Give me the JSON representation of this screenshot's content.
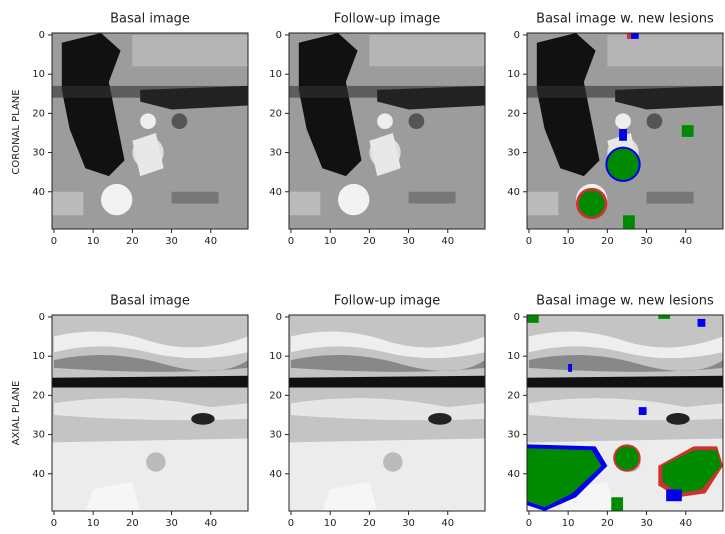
{
  "row_labels": [
    "CORONAL PLANE",
    "AXIAL PLANE"
  ],
  "chart_data": [
    {
      "type": "image",
      "title": "Basal image",
      "xlim": [
        -0.5,
        49.5
      ],
      "ylim": [
        49.5,
        -0.5
      ],
      "xticks": [
        0,
        10,
        20,
        30,
        40
      ],
      "yticks": [
        0,
        10,
        20,
        30,
        40
      ]
    },
    {
      "type": "image",
      "title": "Follow-up image",
      "xlim": [
        -0.5,
        49.5
      ],
      "ylim": [
        49.5,
        -0.5
      ],
      "xticks": [
        0,
        10,
        20,
        30,
        40
      ],
      "yticks": [
        0,
        10,
        20,
        30,
        40
      ]
    },
    {
      "type": "image",
      "title": "Basal image w. new lesions",
      "xlim": [
        -0.5,
        49.5
      ],
      "ylim": [
        49.5,
        -0.5
      ],
      "xticks": [
        0,
        10,
        20,
        30,
        40
      ],
      "yticks": [
        0,
        10,
        20,
        30,
        40
      ]
    },
    {
      "type": "image",
      "title": "Basal image",
      "xlim": [
        -0.5,
        49.5
      ],
      "ylim": [
        49.5,
        -0.5
      ],
      "xticks": [
        0,
        10,
        20,
        30,
        40
      ],
      "yticks": [
        0,
        10,
        20,
        30,
        40
      ]
    },
    {
      "type": "image",
      "title": "Follow-up image",
      "xlim": [
        -0.5,
        49.5
      ],
      "ylim": [
        49.5,
        -0.5
      ],
      "xticks": [
        0,
        10,
        20,
        30,
        40
      ],
      "yticks": [
        0,
        10,
        20,
        30,
        40
      ]
    },
    {
      "type": "image",
      "title": "Basal image w. new lesions",
      "xlim": [
        -0.5,
        49.5
      ],
      "ylim": [
        49.5,
        -0.5
      ],
      "xticks": [
        0,
        10,
        20,
        30,
        40
      ],
      "yticks": [
        0,
        10,
        20,
        30,
        40
      ]
    }
  ]
}
